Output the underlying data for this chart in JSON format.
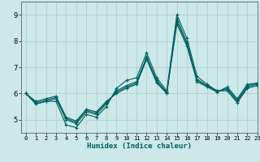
{
  "title": "",
  "xlabel": "Humidex (Indice chaleur)",
  "bg_color": "#cce8e8",
  "grid_color": "#aacccc",
  "line_color": "#006060",
  "xlim": [
    -0.5,
    23
  ],
  "ylim": [
    4.5,
    9.5
  ],
  "yticks": [
    5,
    6,
    7,
    8,
    9
  ],
  "xticks": [
    0,
    1,
    2,
    3,
    4,
    5,
    6,
    7,
    8,
    9,
    10,
    11,
    12,
    13,
    14,
    15,
    16,
    17,
    18,
    19,
    20,
    21,
    22,
    23
  ],
  "series": [
    [
      6.0,
      5.6,
      5.7,
      5.7,
      4.8,
      4.7,
      5.2,
      5.1,
      5.5,
      6.2,
      6.5,
      6.6,
      7.55,
      6.6,
      6.1,
      9.0,
      8.1,
      6.65,
      6.35,
      6.1,
      6.1,
      5.65,
      6.2,
      6.3
    ],
    [
      6.0,
      5.6,
      5.7,
      5.8,
      5.0,
      4.85,
      5.3,
      5.2,
      5.6,
      6.1,
      6.3,
      6.45,
      7.4,
      6.5,
      6.05,
      8.85,
      7.95,
      6.55,
      6.3,
      6.1,
      6.15,
      5.7,
      6.25,
      6.35
    ],
    [
      6.0,
      5.65,
      5.75,
      5.85,
      5.05,
      4.9,
      5.35,
      5.25,
      5.65,
      6.05,
      6.25,
      6.4,
      7.35,
      6.45,
      6.02,
      8.75,
      7.88,
      6.5,
      6.28,
      6.08,
      6.2,
      5.75,
      6.3,
      6.38
    ],
    [
      6.0,
      5.7,
      5.8,
      5.9,
      5.1,
      4.95,
      5.4,
      5.3,
      5.7,
      6.0,
      6.2,
      6.35,
      7.3,
      6.4,
      6.0,
      8.65,
      7.8,
      6.45,
      6.25,
      6.05,
      6.25,
      5.8,
      6.35,
      6.4
    ]
  ]
}
